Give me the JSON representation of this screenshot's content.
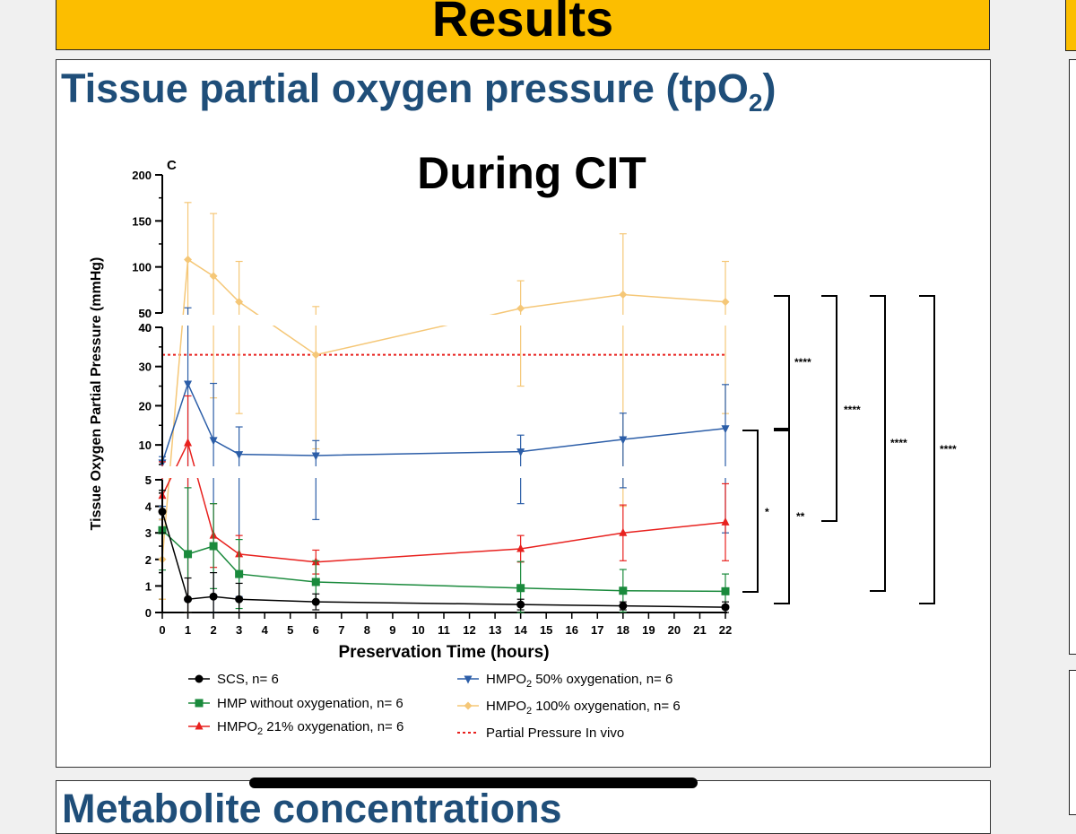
{
  "header": {
    "title": "Results"
  },
  "panel": {
    "title_main": "Tissue partial oxygen pressure (tpO",
    "title_sub": "2",
    "title_end": ")"
  },
  "bottom_panel": {
    "title": "Metabolite concentrations"
  },
  "chart_data": {
    "type": "line",
    "panel_letter": "C",
    "title": "During CIT",
    "xlabel": "Preservation Time (hours)",
    "ylabel": "Tissue Oxygen Partial Pressure (mmHg)",
    "x_ticks": [
      0,
      1,
      2,
      3,
      4,
      5,
      6,
      7,
      8,
      9,
      10,
      11,
      12,
      13,
      14,
      15,
      16,
      17,
      18,
      19,
      20,
      21,
      22
    ],
    "y_axis_segments": [
      {
        "range": [
          0,
          5
        ],
        "ticks": [
          0,
          1,
          2,
          3,
          4,
          5
        ]
      },
      {
        "range": [
          5,
          40
        ],
        "ticks": [
          10,
          20,
          30,
          40
        ]
      },
      {
        "range": [
          50,
          200
        ],
        "ticks": [
          50,
          100,
          150,
          200
        ]
      }
    ],
    "series": [
      {
        "name": "SCS, n= 6",
        "color": "#000000",
        "marker": "circle",
        "x": [
          0,
          1,
          2,
          3,
          6,
          14,
          18,
          22
        ],
        "y": [
          3.8,
          0.5,
          0.6,
          0.5,
          0.4,
          0.3,
          0.25,
          0.2
        ],
        "err": [
          0.8,
          0.8,
          0.9,
          0.6,
          0.3,
          0.2,
          0.15,
          0.2
        ]
      },
      {
        "name": "HMP without oxygenation, n= 6",
        "color": "#1a8a3c",
        "marker": "square",
        "x": [
          0,
          1,
          2,
          3,
          6,
          14,
          18,
          22
        ],
        "y": [
          3.1,
          2.2,
          2.5,
          1.45,
          1.15,
          0.92,
          0.82,
          0.8
        ],
        "err": [
          1.5,
          2.5,
          1.6,
          1.3,
          0.8,
          1.0,
          0.8,
          0.65
        ]
      },
      {
        "name": "HMPO2 21% oxygenation, n= 6",
        "color": "#e8211e",
        "marker": "triangle",
        "x": [
          0,
          1,
          2,
          3,
          6,
          14,
          18,
          22
        ],
        "y": [
          4.4,
          10.5,
          2.9,
          2.2,
          1.9,
          2.4,
          3.0,
          3.4
        ],
        "err": [
          1.3,
          12.0,
          1.2,
          0.7,
          0.45,
          0.5,
          1.05,
          1.45
        ]
      },
      {
        "name": "HMPO2 50% oxygenation, n= 6",
        "color": "#2c5ea8",
        "marker": "triangle-down",
        "x": [
          0,
          1,
          2,
          3,
          6,
          14,
          18,
          22
        ],
        "y": [
          5.5,
          25.6,
          11.2,
          7.6,
          7.3,
          8.3,
          11.4,
          14.2
        ],
        "err": [
          1.5,
          30,
          14.5,
          7.0,
          3.8,
          4.2,
          6.7,
          11.2
        ]
      },
      {
        "name": "HMPO2 100% oxygenation, n= 6",
        "color": "#f5c777",
        "marker": "diamond",
        "x": [
          0,
          1,
          2,
          3,
          6,
          14,
          18,
          22
        ],
        "y": [
          2.0,
          108,
          90,
          62,
          33,
          55,
          70,
          62
        ],
        "err": [
          1.5,
          62,
          68,
          44,
          24,
          30,
          66,
          44
        ]
      },
      {
        "name": "Partial Pressure In vivo",
        "color": "#e8211e",
        "style": "dotted",
        "y_constant": 33
      }
    ],
    "legend": [
      {
        "prefix": "SCS, n= 6"
      },
      {
        "prefix": "HMP without oxygenation, n= 6"
      },
      {
        "prefix": "HMPO",
        "sub": "2",
        "suffix": " 21% oxygenation, n= 6"
      },
      {
        "prefix": "HMPO",
        "sub": "2",
        "suffix": " 50% oxygenation, n= 6"
      },
      {
        "prefix": "HMPO",
        "sub": "2",
        "suffix": " 100% oxygenation, n= 6"
      },
      {
        "prefix": "Partial Pressure In vivo"
      }
    ],
    "significance": [
      {
        "label": "*"
      },
      {
        "label": "**"
      },
      {
        "label": "****"
      },
      {
        "label": "****"
      },
      {
        "label": "****"
      },
      {
        "label": "****"
      }
    ]
  }
}
